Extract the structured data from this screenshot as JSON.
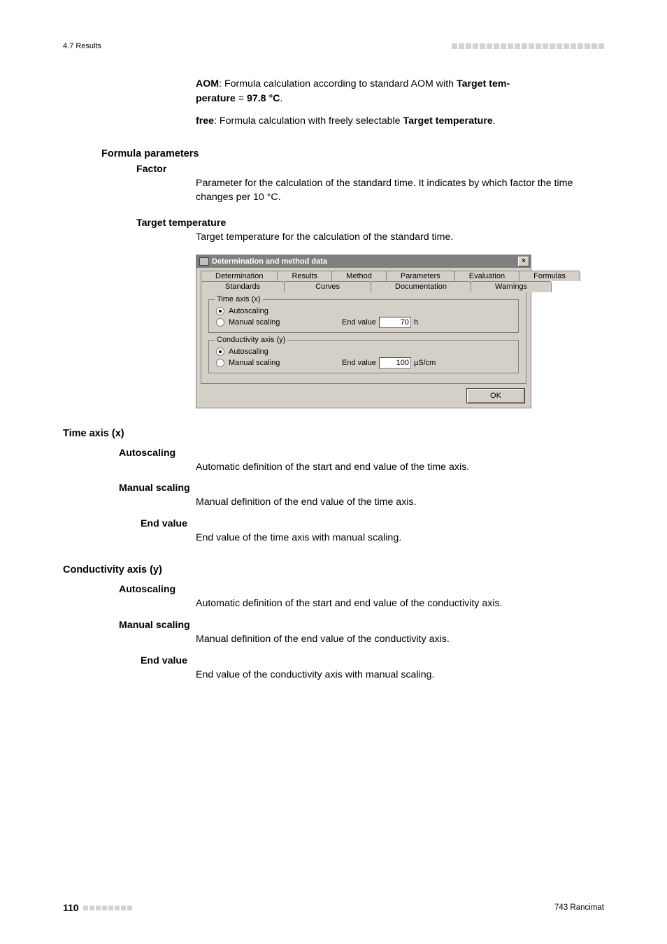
{
  "header": {
    "section": "4.7 Results",
    "dot_count": 22,
    "dot_color": "#d3d3d3"
  },
  "intro": {
    "aom_line_prefix": "AOM",
    "aom_line_mid": ": Formula calculation according to standard AOM with ",
    "aom_line_bold2a": "Target tem-",
    "aom_line_bold2b": "perature",
    "aom_line_suffix": " = ",
    "aom_line_val": "97.8 °C",
    "aom_line_end": ".",
    "free_prefix": "free",
    "free_mid": ": Formula calculation with freely selectable ",
    "free_bold": "Target temperature",
    "free_end": "."
  },
  "formula_params": {
    "heading": "Formula parameters",
    "factor_h": "Factor",
    "factor_body": "Parameter for the calculation of the standard time. It indicates by which factor the time changes per 10 °C.",
    "tgt_h": "Target temperature",
    "tgt_body": "Target temperature for the calculation of the standard time."
  },
  "dialog": {
    "title": "Determination and method data",
    "tabs_row1": [
      "Determination",
      "Results",
      "Method",
      "Parameters",
      "Evaluation",
      "Formulas"
    ],
    "tabs_row2": [
      "Standards",
      "Curves",
      "Documentation",
      "Warnings"
    ],
    "time_group": {
      "legend": "Time axis (x)",
      "opt1": "Autoscaling",
      "opt1_checked": true,
      "opt2": "Manual scaling",
      "opt2_checked": false,
      "end_label": "End value",
      "end_value": "70",
      "end_unit": "h"
    },
    "cond_group": {
      "legend": "Conductivity axis (y)",
      "opt1": "Autoscaling",
      "opt1_checked": true,
      "opt2": "Manual scaling",
      "opt2_checked": false,
      "end_label": "End value",
      "end_value": "100",
      "end_unit": "µS/cm"
    },
    "ok": "OK",
    "titlebar_bg": "#808080",
    "panel_bg": "#d4d0c8"
  },
  "time_axis": {
    "heading": "Time axis (x)",
    "auto_h": "Autoscaling",
    "auto_body": "Automatic definition of the start and end value of the time axis.",
    "manual_h": "Manual scaling",
    "manual_body": "Manual definition of the end value of the time axis.",
    "end_h": "End value",
    "end_body": "End value of the time axis with manual scaling."
  },
  "cond_axis": {
    "heading": "Conductivity axis (y)",
    "auto_h": "Autoscaling",
    "auto_body": "Automatic definition of the start and end value of the conductivity axis.",
    "manual_h": "Manual scaling",
    "manual_body": "Manual definition of the end value of the conductivity axis.",
    "end_h": "End value",
    "end_body": "End value of the conductivity axis with manual scaling."
  },
  "footer": {
    "page": "110",
    "dot_count": 8,
    "product": "743 Rancimat"
  }
}
